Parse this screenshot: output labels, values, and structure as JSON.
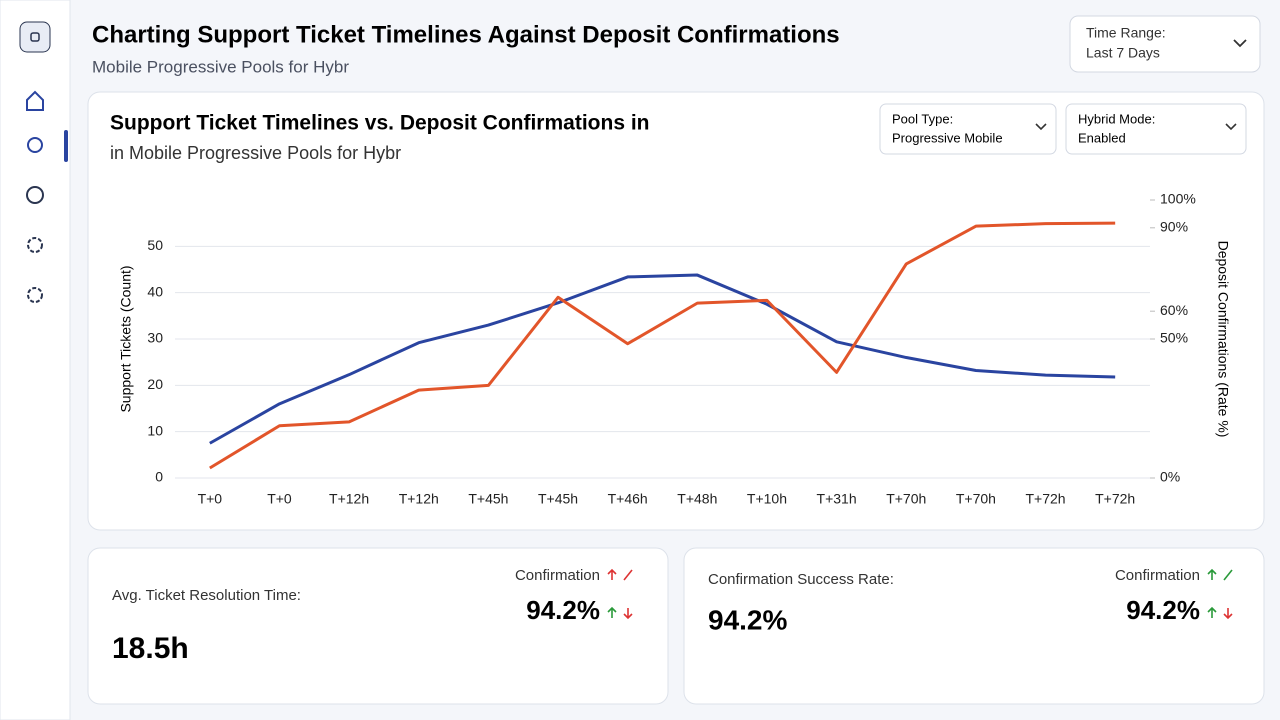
{
  "header": {
    "title": "Charting Support Ticket Timelines Against Deposit Confirmations",
    "subtitle": "Mobile Progressive Pools for Hybr"
  },
  "time_range": {
    "label": "Time Range:",
    "value": "Last 7 Days"
  },
  "filters": [
    {
      "label": "Pool Type:",
      "value": "Progressive Mobile"
    },
    {
      "label": "Hybrid Mode:",
      "value": "Enabled"
    }
  ],
  "chart_data": {
    "type": "line",
    "title": "Support Ticket Timelines vs. Deposit Confirmations in",
    "subtitle": "in Mobile Progressive Pools for Hybr",
    "y_label": "Support Tickets (Count)",
    "y2_label": "Deposit Confirmations (Rate %)",
    "categories": [
      "T+0",
      "T+0",
      "T+12h",
      "T+12h",
      "T+45h",
      "T+45h",
      "T+46h",
      "T+48h",
      "T+10h",
      "T+31h",
      "T+70h",
      "T+70h",
      "T+72h",
      "T+72h"
    ],
    "series": [
      {
        "color": "#2a44a0",
        "values": [
          7.5,
          16,
          22.3,
          29.2,
          33,
          37.8,
          43.4,
          43.8,
          37.5,
          29.4,
          26,
          23.2,
          22.2,
          21.8
        ]
      },
      {
        "color": "#e2552a",
        "axis": "y2",
        "values": [
          3.6,
          18.8,
          20.2,
          31.6,
          33.3,
          65,
          48.3,
          62.9,
          63.9,
          38,
          77,
          90.6,
          91.5,
          91.7
        ]
      }
    ],
    "ylim": [
      0,
      60
    ],
    "yticks": [
      0,
      10,
      20,
      30,
      40,
      50
    ],
    "y2lim": [
      0,
      100
    ],
    "y2ticks": [
      {
        "value": 0,
        "label": "0%"
      },
      {
        "value": 50,
        "label": "50%"
      },
      {
        "value": 60,
        "label": "60%"
      },
      {
        "value": 90,
        "label": "90%"
      },
      {
        "value": 100,
        "label": "100%"
      }
    ],
    "grid": true
  },
  "kpis": [
    {
      "label": "Avg. Ticket Resolution Time:",
      "value": "18.5h",
      "side_label": "Confirmation",
      "side_value": "94.2%"
    },
    {
      "label": "Confirmation Success Rate:",
      "value": "94.2%",
      "side_label": "Confirmation",
      "side_value": "94.2%"
    }
  ]
}
